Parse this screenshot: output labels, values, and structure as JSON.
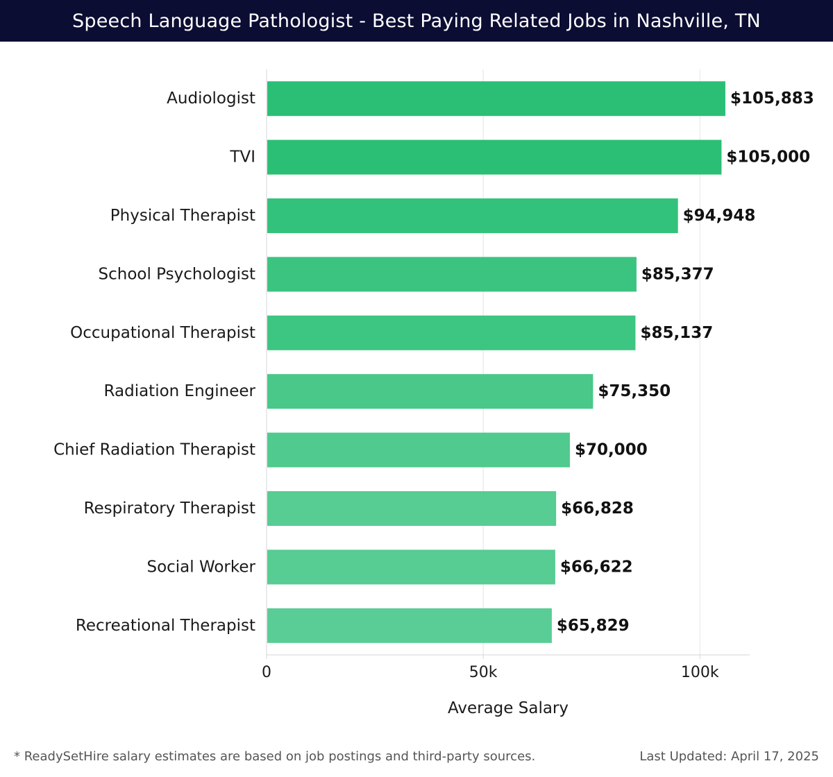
{
  "header": {
    "title": "Speech Language Pathologist - Best Paying Related Jobs in Nashville, TN"
  },
  "chart_data": {
    "type": "bar",
    "orientation": "horizontal",
    "categories": [
      "Audiologist",
      "TVI",
      "Physical Therapist",
      "School Psychologist",
      "Occupational Therapist",
      "Radiation Engineer",
      "Chief Radiation Therapist",
      "Respiratory Therapist",
      "Social Worker",
      "Recreational Therapist"
    ],
    "values": [
      105883,
      105000,
      94948,
      85377,
      85137,
      75350,
      70000,
      66828,
      66622,
      65829
    ],
    "value_labels": [
      "$105,883",
      "$105,000",
      "$94,948",
      "$85,377",
      "$85,137",
      "$75,350",
      "$70,000",
      "$66,828",
      "$66,622",
      "$65,829"
    ],
    "xlabel": "Average Salary",
    "ylabel": "",
    "xlim": [
      0,
      111500
    ],
    "xticks": [
      0,
      50000,
      100000
    ],
    "xtick_labels": [
      "0",
      "50k",
      "100k"
    ],
    "grid": "vertical",
    "bar_colors": [
      "#2bbf76",
      "#2bbf76",
      "#33c27b",
      "#3bc480",
      "#3dc582",
      "#49c88a",
      "#50ca8e",
      "#57cc93",
      "#57cc93",
      "#59cd95"
    ]
  },
  "footer": {
    "note": "* ReadySetHire salary estimates are based on job postings and third-party sources.",
    "updated": "Last Updated: April 17, 2025"
  }
}
